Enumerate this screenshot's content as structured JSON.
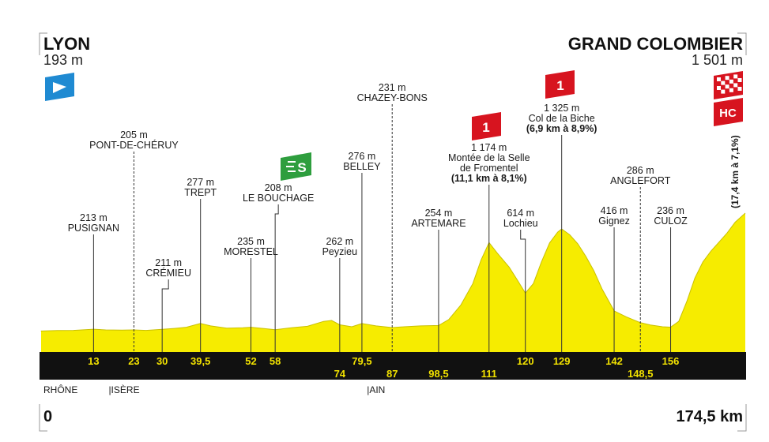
{
  "start": {
    "name": "LYON",
    "altitude": "193 m"
  },
  "finish": {
    "name": "GRAND COLOMBIER",
    "altitude": "1 501 m"
  },
  "distance": {
    "start": "0",
    "end": "174,5 km"
  },
  "final_climb_note": "(17,4 km à 7,1%)",
  "badges": {
    "hc": "HC",
    "cat1": "1",
    "sprint": "S"
  },
  "regions": [
    {
      "label": "RHÔNE",
      "km": 0
    },
    {
      "label": "|ISÈRE",
      "km": 23
    },
    {
      "label": "|AIN",
      "km": 87
    }
  ],
  "colors": {
    "profile_fill": "#f6ec00",
    "profile_edge": "#c9c000",
    "km_band": "#111111",
    "km_text": "#f2e200",
    "start_flag": "#1f8ad2",
    "sprint_badge": "#2e9e3e",
    "climb_badge": "#d7141f",
    "leader_line": "#333333"
  },
  "profile": {
    "total_km": 174.5,
    "points": [
      [
        0,
        193
      ],
      [
        4,
        198
      ],
      [
        8,
        200
      ],
      [
        13,
        213
      ],
      [
        16,
        205
      ],
      [
        20,
        203
      ],
      [
        23,
        205
      ],
      [
        26,
        200
      ],
      [
        30,
        211
      ],
      [
        33,
        222
      ],
      [
        36,
        235
      ],
      [
        39.5,
        277
      ],
      [
        42,
        250
      ],
      [
        46,
        225
      ],
      [
        50,
        230
      ],
      [
        52,
        235
      ],
      [
        55,
        222
      ],
      [
        58,
        208
      ],
      [
        62,
        230
      ],
      [
        66,
        245
      ],
      [
        70,
        300
      ],
      [
        72,
        310
      ],
      [
        74,
        262
      ],
      [
        77,
        240
      ],
      [
        79.5,
        276
      ],
      [
        83,
        250
      ],
      [
        87,
        231
      ],
      [
        90,
        240
      ],
      [
        94,
        250
      ],
      [
        98.5,
        254
      ],
      [
        101,
        320
      ],
      [
        104,
        480
      ],
      [
        107,
        720
      ],
      [
        109,
        980
      ],
      [
        111,
        1174
      ],
      [
        113,
        1060
      ],
      [
        116,
        900
      ],
      [
        118,
        760
      ],
      [
        120,
        614
      ],
      [
        122,
        720
      ],
      [
        124,
        960
      ],
      [
        126,
        1170
      ],
      [
        128,
        1290
      ],
      [
        129,
        1325
      ],
      [
        131,
        1260
      ],
      [
        133,
        1160
      ],
      [
        135,
        1020
      ],
      [
        137,
        860
      ],
      [
        139,
        660
      ],
      [
        142,
        416
      ],
      [
        145,
        350
      ],
      [
        148.5,
        286
      ],
      [
        151,
        260
      ],
      [
        154,
        240
      ],
      [
        156,
        236
      ],
      [
        158,
        300
      ],
      [
        160,
        520
      ],
      [
        162,
        780
      ],
      [
        164,
        960
      ],
      [
        166,
        1080
      ],
      [
        168,
        1180
      ],
      [
        170,
        1280
      ],
      [
        172,
        1400
      ],
      [
        174.5,
        1501
      ]
    ]
  },
  "points": [
    {
      "km": 13,
      "km_label": "13",
      "alt": "213 m",
      "name": "PUSIGNAN",
      "row": "top"
    },
    {
      "km": 23,
      "km_label": "23",
      "alt": "205 m",
      "name": "PONT-DE-CHÉRUY",
      "row": "top"
    },
    {
      "km": 30,
      "km_label": "30",
      "alt": "211 m",
      "name": "CRÉMIEU",
      "row": "top"
    },
    {
      "km": 39.5,
      "km_label": "39,5",
      "alt": "277 m",
      "name": "TREPT",
      "row": "top"
    },
    {
      "km": 52,
      "km_label": "52",
      "alt": "235 m",
      "name": "MORESTEL",
      "row": "top"
    },
    {
      "km": 58,
      "km_label": "58",
      "alt": "208 m",
      "name": "LE BOUCHAGE",
      "row": "top"
    },
    {
      "km": 74,
      "km_label": "74",
      "alt": "262 m",
      "name": "Peyzieu",
      "row": "bottom"
    },
    {
      "km": 79.5,
      "km_label": "79,5",
      "alt": "276 m",
      "name": "BELLEY",
      "row": "top"
    },
    {
      "km": 87,
      "km_label": "87",
      "alt": "231 m",
      "name": "CHAZEY-BONS",
      "row": "bottom"
    },
    {
      "km": 98.5,
      "km_label": "98,5",
      "alt": "254 m",
      "name": "ARTEMARE",
      "row": "bottom"
    },
    {
      "km": 111,
      "km_label": "111",
      "alt": "1 174 m",
      "name": "Montée de la Selle",
      "name2": "de Fromentel",
      "note": "(11,1 km à 8,1%)",
      "row": "bottom"
    },
    {
      "km": 120,
      "km_label": "120",
      "alt": "614 m",
      "name": "Lochieu",
      "row": "top"
    },
    {
      "km": 129,
      "km_label": "129",
      "alt": "1 325 m",
      "name": "Col de la Biche",
      "note": "(6,9 km à 8,9%)",
      "row": "top"
    },
    {
      "km": 142,
      "km_label": "142",
      "alt": "416 m",
      "name": "Gignez",
      "row": "top"
    },
    {
      "km": 148.5,
      "km_label": "148,5",
      "alt": "286 m",
      "name": "ANGLEFORT",
      "row": "bottom"
    },
    {
      "km": 156,
      "km_label": "156",
      "alt": "236 m",
      "name": "CULOZ",
      "row": "top"
    }
  ]
}
